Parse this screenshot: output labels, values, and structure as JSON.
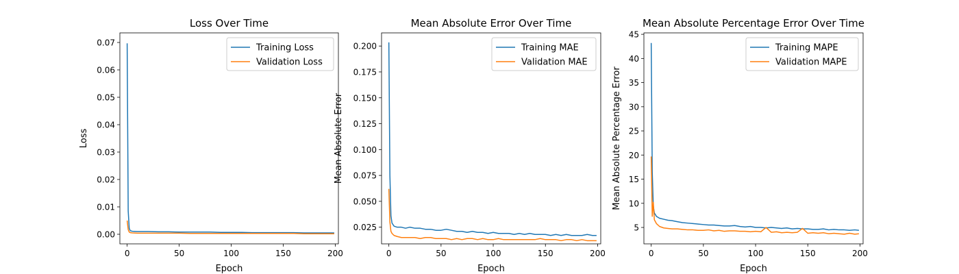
{
  "colors": {
    "training": "#1f77b4",
    "validation": "#ff7f0e"
  },
  "chart_data": [
    {
      "type": "line",
      "title": "Loss Over Time",
      "xlabel": "Epoch",
      "ylabel": "Loss",
      "xlim": [
        -7,
        203
      ],
      "ylim": [
        -0.0035,
        0.0735
      ],
      "xticks": [
        0,
        50,
        100,
        150,
        200
      ],
      "yticks": [
        0.0,
        0.01,
        0.02,
        0.03,
        0.04,
        0.05,
        0.06,
        0.07
      ],
      "ytick_decimals": 2,
      "legend": "upper-right",
      "grid": false,
      "series": [
        {
          "name": "Training Loss",
          "color": "training",
          "x": [
            0,
            1,
            2,
            3,
            5,
            10,
            20,
            30,
            40,
            50,
            60,
            70,
            80,
            90,
            100,
            110,
            120,
            130,
            140,
            150,
            160,
            170,
            180,
            190,
            199
          ],
          "y": [
            0.0697,
            0.0085,
            0.0021,
            0.0013,
            0.0011,
            0.001,
            0.001,
            0.0009,
            0.0009,
            0.0008,
            0.0008,
            0.0008,
            0.0008,
            0.0007,
            0.0007,
            0.0007,
            0.0006,
            0.0006,
            0.0006,
            0.0006,
            0.0006,
            0.0005,
            0.0005,
            0.0005,
            0.0005
          ]
        },
        {
          "name": "Validation Loss",
          "color": "validation",
          "x": [
            0,
            1,
            2,
            3,
            5,
            10,
            20,
            30,
            40,
            50,
            60,
            70,
            80,
            90,
            100,
            110,
            120,
            130,
            140,
            150,
            160,
            170,
            180,
            190,
            199
          ],
          "y": [
            0.005,
            0.0017,
            0.0008,
            0.0006,
            0.0005,
            0.0004,
            0.0004,
            0.0004,
            0.0004,
            0.0004,
            0.0003,
            0.0003,
            0.0003,
            0.0003,
            0.0003,
            0.0003,
            0.0003,
            0.0003,
            0.0003,
            0.0003,
            0.0003,
            0.0002,
            0.0002,
            0.0002,
            0.0002
          ]
        }
      ]
    },
    {
      "type": "line",
      "title": "Mean Absolute Error Over Time",
      "xlabel": "Epoch",
      "ylabel": "Mean Absolute Error",
      "xlim": [
        -7,
        203
      ],
      "ylim": [
        0.0089,
        0.2127
      ],
      "xticks": [
        0,
        50,
        100,
        150,
        200
      ],
      "yticks": [
        0.025,
        0.05,
        0.075,
        0.1,
        0.125,
        0.15,
        0.175,
        0.2
      ],
      "ytick_decimals": 3,
      "legend": "upper-right",
      "grid": false,
      "series": [
        {
          "name": "Training MAE",
          "color": "training",
          "x": [
            0,
            1,
            2,
            3,
            5,
            8,
            12,
            16,
            20,
            25,
            30,
            35,
            40,
            45,
            50,
            55,
            60,
            65,
            70,
            75,
            80,
            85,
            90,
            95,
            100,
            105,
            110,
            115,
            120,
            125,
            130,
            135,
            140,
            145,
            150,
            155,
            160,
            165,
            170,
            175,
            180,
            185,
            190,
            195,
            199
          ],
          "y": [
            0.2035,
            0.075,
            0.036,
            0.029,
            0.026,
            0.025,
            0.025,
            0.024,
            0.025,
            0.024,
            0.024,
            0.023,
            0.023,
            0.022,
            0.022,
            0.023,
            0.022,
            0.021,
            0.021,
            0.02,
            0.021,
            0.02,
            0.02,
            0.019,
            0.02,
            0.019,
            0.019,
            0.019,
            0.018,
            0.019,
            0.018,
            0.019,
            0.018,
            0.018,
            0.018,
            0.017,
            0.018,
            0.017,
            0.018,
            0.017,
            0.017,
            0.017,
            0.018,
            0.017,
            0.017
          ]
        },
        {
          "name": "Validation MAE",
          "color": "validation",
          "x": [
            0,
            1,
            2,
            3,
            5,
            8,
            12,
            16,
            20,
            25,
            30,
            35,
            40,
            45,
            50,
            55,
            60,
            65,
            70,
            75,
            80,
            85,
            90,
            95,
            100,
            105,
            110,
            115,
            120,
            125,
            130,
            135,
            140,
            145,
            150,
            155,
            160,
            165,
            170,
            175,
            180,
            185,
            190,
            195,
            199
          ],
          "y": [
            0.062,
            0.03,
            0.021,
            0.019,
            0.017,
            0.016,
            0.015,
            0.015,
            0.015,
            0.015,
            0.014,
            0.015,
            0.015,
            0.014,
            0.014,
            0.014,
            0.013,
            0.014,
            0.013,
            0.014,
            0.014,
            0.013,
            0.014,
            0.013,
            0.013,
            0.014,
            0.013,
            0.013,
            0.013,
            0.013,
            0.013,
            0.013,
            0.013,
            0.014,
            0.013,
            0.013,
            0.013,
            0.012,
            0.013,
            0.013,
            0.012,
            0.013,
            0.012,
            0.012,
            0.012
          ]
        }
      ]
    },
    {
      "type": "line",
      "title": "Mean Absolute Percentage Error Over Time",
      "xlabel": "Epoch",
      "ylabel": "Mean Absolute Percentage Error",
      "xlim": [
        -7,
        203
      ],
      "ylim": [
        1.6,
        45.3
      ],
      "xticks": [
        0,
        50,
        100,
        150,
        200
      ],
      "yticks": [
        5,
        10,
        15,
        20,
        25,
        30,
        35,
        40,
        45
      ],
      "ytick_decimals": 0,
      "legend": "upper-right",
      "grid": false,
      "series": [
        {
          "name": "Training MAPE",
          "color": "training",
          "x": [
            0,
            1,
            2,
            3,
            5,
            8,
            12,
            16,
            20,
            25,
            30,
            35,
            40,
            45,
            50,
            55,
            60,
            65,
            70,
            75,
            80,
            85,
            90,
            95,
            100,
            105,
            110,
            115,
            120,
            125,
            130,
            135,
            140,
            145,
            150,
            155,
            160,
            165,
            170,
            175,
            180,
            185,
            190,
            195,
            199
          ],
          "y": [
            43.2,
            16.5,
            9.5,
            8.0,
            7.3,
            6.9,
            6.7,
            6.5,
            6.4,
            6.2,
            6.0,
            5.9,
            5.8,
            5.7,
            5.6,
            5.5,
            5.5,
            5.4,
            5.3,
            5.3,
            5.4,
            5.2,
            5.1,
            5.2,
            5.0,
            5.0,
            4.9,
            5.0,
            4.9,
            4.8,
            4.9,
            4.7,
            4.8,
            4.7,
            4.7,
            4.6,
            4.6,
            4.7,
            4.5,
            4.6,
            4.5,
            4.5,
            4.4,
            4.5,
            4.4
          ]
        },
        {
          "name": "Validation MAPE",
          "color": "validation",
          "x": [
            0,
            1,
            2,
            3,
            5,
            8,
            12,
            16,
            20,
            25,
            30,
            35,
            40,
            45,
            50,
            55,
            60,
            65,
            70,
            75,
            80,
            85,
            90,
            95,
            100,
            105,
            110,
            115,
            120,
            125,
            130,
            135,
            140,
            145,
            150,
            155,
            160,
            165,
            170,
            175,
            180,
            185,
            190,
            195,
            199
          ],
          "y": [
            19.7,
            7.3,
            10.2,
            6.6,
            5.8,
            5.2,
            4.9,
            4.8,
            4.7,
            4.7,
            4.6,
            4.5,
            4.5,
            4.4,
            4.4,
            4.5,
            4.3,
            4.4,
            4.2,
            4.3,
            4.3,
            4.2,
            4.2,
            4.1,
            4.2,
            4.1,
            5.0,
            4.0,
            4.1,
            3.9,
            4.0,
            3.9,
            4.0,
            4.8,
            3.8,
            3.9,
            3.8,
            3.9,
            3.7,
            3.8,
            3.7,
            3.6,
            3.8,
            3.6,
            3.7
          ]
        }
      ]
    }
  ]
}
